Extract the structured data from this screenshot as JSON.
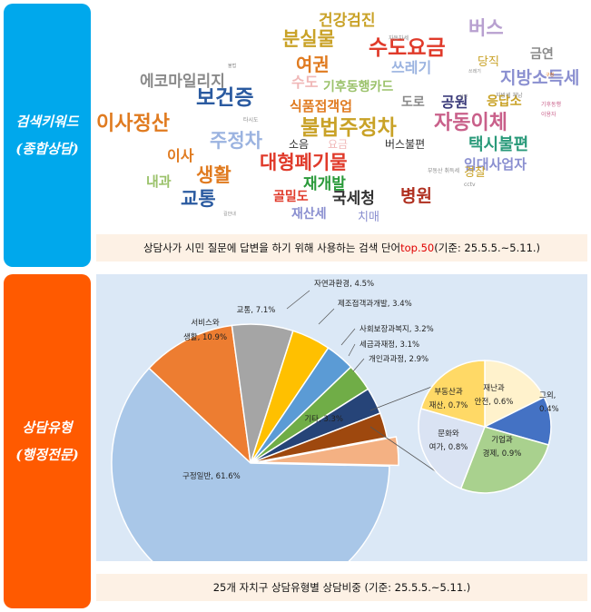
{
  "sidebar": {
    "top_lines": [
      "검색키워드",
      "(종합상담)"
    ],
    "bottom_lines": [
      "상담유형",
      "(행정전문)"
    ]
  },
  "wordcloud": {
    "words": [
      {
        "text": "건강검진",
        "color": "#c9a227"
      },
      {
        "text": "분실물",
        "color": "#c9a227"
      },
      {
        "text": "수도요금",
        "color": "#e03a2a"
      },
      {
        "text": "버스",
        "color": "#b8a0d0"
      },
      {
        "text": "금연",
        "color": "#8a8a8a"
      },
      {
        "text": "여권",
        "color": "#e07b20"
      },
      {
        "text": "쓰레기",
        "color": "#9bb3e0"
      },
      {
        "text": "당직",
        "color": "#c9a227"
      },
      {
        "text": "지방소득세",
        "color": "#8a8fd0"
      },
      {
        "text": "에코마일리지",
        "color": "#8a8a8a"
      },
      {
        "text": "보건증",
        "color": "#2a5aa0"
      },
      {
        "text": "수도",
        "color": "#f0b8b8"
      },
      {
        "text": "기후동행카드",
        "color": "#9bc26b"
      },
      {
        "text": "도로",
        "color": "#8a8a8a"
      },
      {
        "text": "공원",
        "color": "#3a3a7a"
      },
      {
        "text": "응답소",
        "color": "#c9a227"
      },
      {
        "text": "이사정산",
        "color": "#e07b20"
      },
      {
        "text": "식품접객업",
        "color": "#e07b20"
      },
      {
        "text": "불법주정차",
        "color": "#c9a227"
      },
      {
        "text": "자동이체",
        "color": "#c9608a"
      },
      {
        "text": "임대사업자",
        "color": "#8a8fd0"
      },
      {
        "text": "주정차",
        "color": "#9bb3e0"
      },
      {
        "text": "소음",
        "color": "#333333"
      },
      {
        "text": "요금",
        "color": "#f0b8b8"
      },
      {
        "text": "버스불편",
        "color": "#333333"
      },
      {
        "text": "택시불편",
        "color": "#2a9a7a"
      },
      {
        "text": "이사",
        "color": "#e07b20"
      },
      {
        "text": "대형폐기물",
        "color": "#e03a2a"
      },
      {
        "text": "경찰",
        "color": "#c9a227"
      },
      {
        "text": "생활",
        "color": "#e07b20"
      },
      {
        "text": "재개발",
        "color": "#2a9a3a"
      },
      {
        "text": "내과",
        "color": "#9bc26b"
      },
      {
        "text": "교통",
        "color": "#2a5aa0"
      },
      {
        "text": "골밀도",
        "color": "#e03a2a"
      },
      {
        "text": "국세청",
        "color": "#333333"
      },
      {
        "text": "병원",
        "color": "#b03020"
      },
      {
        "text": "재산세",
        "color": "#8a8fd0"
      },
      {
        "text": "치매",
        "color": "#8a8fd0"
      },
      {
        "text": "자동차세",
        "color": "#8a8a8a"
      },
      {
        "text": "불법",
        "color": "#8a8a8a"
      },
      {
        "text": "쓰레기",
        "color": "#8a8a8a"
      },
      {
        "text": "지방세 체납",
        "color": "#8a8a8a"
      },
      {
        "text": "기후동행",
        "color": "#c9608a"
      },
      {
        "text": "이용자",
        "color": "#c9608a"
      },
      {
        "text": "타시도",
        "color": "#8a8a8a"
      },
      {
        "text": "부동산 취득세",
        "color": "#8a8a8a"
      },
      {
        "text": "cctv",
        "color": "#8a8a8a"
      },
      {
        "text": "길안내",
        "color": "#8a8a8a"
      },
      {
        "text": "구청",
        "color": "#e07b20"
      },
      {
        "text": "상인",
        "color": "#8a8a8a"
      }
    ]
  },
  "captions": {
    "top_before": "상담사가 시민 질문에 답변을 하기 위해 사용하는 검색 단어 ",
    "top_highlight": "top.50",
    "top_after": " (기준: 25.5.5.~5.11.)",
    "bottom": "25개 자치구 상담유형별 상담비중 (기준: 25.5.5.~5.11.)"
  },
  "chart_data": [
    {
      "type": "pie",
      "slices": [
        {
          "label": "구정일반, 61.6%",
          "value": 61.6,
          "color": "#a9c7e8"
        },
        {
          "label": "서비스와 생활, 10.9%",
          "value": 10.9,
          "color": "#ed7d31"
        },
        {
          "label": "교통, 7.1%",
          "value": 7.1,
          "color": "#a5a5a5"
        },
        {
          "label": "자연과환경, 4.5%",
          "value": 4.5,
          "color": "#ffc000"
        },
        {
          "label": "제조접객과개발, 3.4%",
          "value": 3.4,
          "color": "#5b9bd5"
        },
        {
          "label": "사회보장과복지, 3.2%",
          "value": 3.2,
          "color": "#70ad47"
        },
        {
          "label": "세금과재정, 3.1%",
          "value": 3.1,
          "color": "#264478"
        },
        {
          "label": "개인과과정, 2.9%",
          "value": 2.9,
          "color": "#9e480e"
        },
        {
          "label": "기타, 3.3%",
          "value": 3.3,
          "color": "#f4b183"
        }
      ]
    },
    {
      "type": "pie",
      "slices": [
        {
          "label": "재난과 안전, 0.6%",
          "value": 0.6,
          "color": "#fff2cc"
        },
        {
          "label": "그외, 0.4%",
          "value": 0.4,
          "color": "#4472c4"
        },
        {
          "label": "기업과 경제, 0.9%",
          "value": 0.9,
          "color": "#a9d18e"
        },
        {
          "label": "문화와 여가, 0.8%",
          "value": 0.8,
          "color": "#dae3f3"
        },
        {
          "label": "부동산과 재산, 0.7%",
          "value": 0.7,
          "color": "#ffd966"
        }
      ]
    }
  ]
}
